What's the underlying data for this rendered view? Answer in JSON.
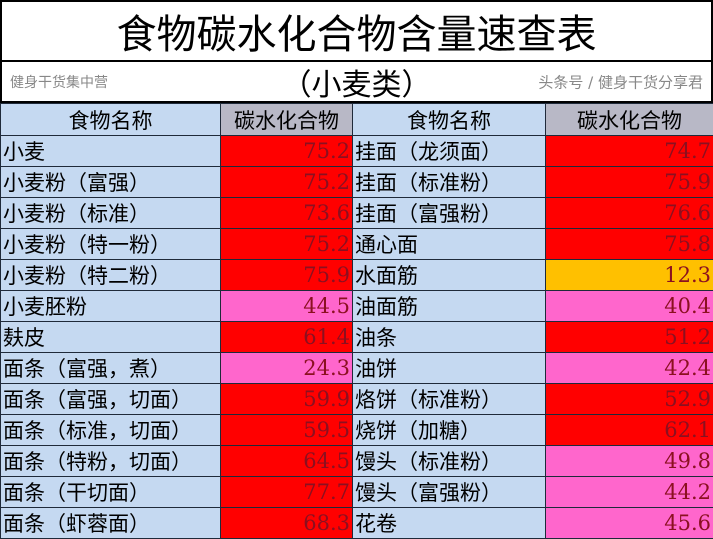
{
  "title": "食物碳水化合物含量速查表",
  "subtitle": "（小麦类）",
  "headers": [
    "食物名称",
    "碳水化合物",
    "食物名称",
    "碳水化合物"
  ],
  "colors": {
    "high": "#ff0000",
    "medium": "#ff66cc",
    "low": "#ffc000",
    "name_bg": "#c5d9f1"
  },
  "rows": [
    {
      "n1": "小麦",
      "v1": "75.2",
      "c1": "high",
      "n2": "挂面（龙须面）",
      "v2": "74.7",
      "c2": "high"
    },
    {
      "n1": "小麦粉（富强）",
      "v1": "75.2",
      "c1": "high",
      "n2": "挂面（标准粉）",
      "v2": "75.9",
      "c2": "high"
    },
    {
      "n1": "小麦粉（标准）",
      "v1": "73.6",
      "c1": "high",
      "n2": "挂面（富强粉）",
      "v2": "76.6",
      "c2": "high"
    },
    {
      "n1": "小麦粉（特一粉）",
      "v1": "75.2",
      "c1": "high",
      "n2": "通心面",
      "v2": "75.8",
      "c2": "high"
    },
    {
      "n1": "小麦粉（特二粉）",
      "v1": "75.9",
      "c1": "high",
      "n2": "水面筋",
      "v2": "12.3",
      "c2": "low"
    },
    {
      "n1": "小麦胚粉",
      "v1": "44.5",
      "c1": "medium",
      "n2": "油面筋",
      "v2": "40.4",
      "c2": "medium"
    },
    {
      "n1": "麸皮",
      "v1": "61.4",
      "c1": "high",
      "n2": "油条",
      "v2": "51.2",
      "c2": "high"
    },
    {
      "n1": "面条（富强，煮）",
      "v1": "24.3",
      "c1": "medium",
      "n2": "油饼",
      "v2": "42.4",
      "c2": "medium"
    },
    {
      "n1": "面条（富强，切面）",
      "v1": "59.9",
      "c1": "high",
      "n2": "烙饼（标准粉）",
      "v2": "52.9",
      "c2": "high"
    },
    {
      "n1": "面条（标准，切面）",
      "v1": "59.5",
      "c1": "high",
      "n2": "烧饼（加糖）",
      "v2": "62.1",
      "c2": "high"
    },
    {
      "n1": "面条（特粉，切面）",
      "v1": "64.5",
      "c1": "high",
      "n2": "馒头（标准粉）",
      "v2": "49.8",
      "c2": "medium"
    },
    {
      "n1": "面条（干切面）",
      "v1": "77.7",
      "c1": "high",
      "n2": "馒头（富强粉）",
      "v2": "44.2",
      "c2": "medium"
    },
    {
      "n1": "面条（虾蓉面）",
      "v1": "68.3",
      "c1": "high",
      "n2": "花卷",
      "v2": "45.6",
      "c2": "medium"
    }
  ],
  "watermark": {
    "line1": "健身干货集中营",
    "line2": "头条号 / 健身干货分享君"
  }
}
